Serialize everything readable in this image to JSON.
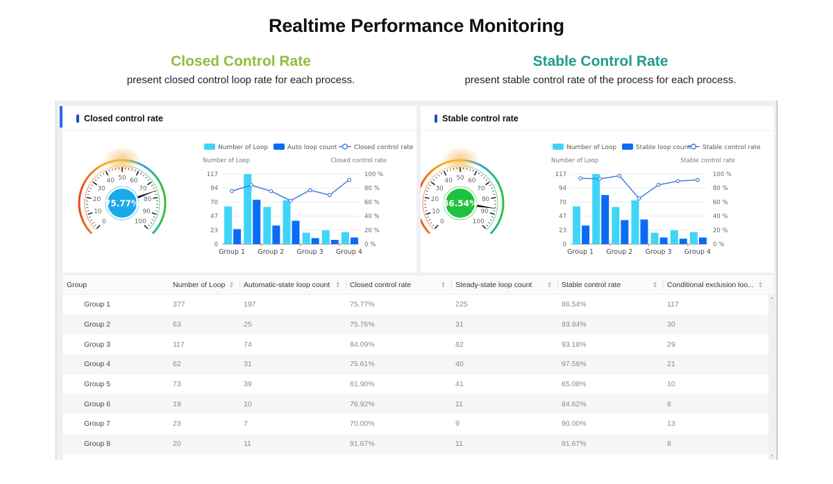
{
  "page": {
    "title": "Realtime Performance Monitoring",
    "left_section": {
      "heading": "Closed Control Rate",
      "description": "present closed control loop rate for each process.",
      "color": "#8DBF3C"
    },
    "right_section": {
      "heading": "Stable Control Rate",
      "description": "present stable control rate of the process for each process.",
      "color": "#1C9B8E"
    }
  },
  "colors": {
    "bar_light": "#3fd5f8",
    "bar_dark": "#0a6cf5",
    "line": "#3f7fd4",
    "gauge_blue": "#1ca9e8",
    "gauge_green": "#1fc23c"
  },
  "panels": [
    {
      "title": "Closed control rate",
      "gauge": {
        "value": 75.77,
        "label": "75.77%",
        "fill": "#1ca9e8",
        "ticks": [
          "0",
          "10",
          "20",
          "30",
          "40",
          "50",
          "60",
          "70",
          "80",
          "90",
          "100"
        ]
      },
      "legend": [
        "Number of Loop",
        "Auto loop count",
        "Closed control rate"
      ],
      "left_axis_title": "Number of Loop",
      "right_axis_title": "Closed control rate"
    },
    {
      "title": "Stable control rate",
      "gauge": {
        "value": 86.54,
        "label": "86.54%",
        "fill": "#1fc23c",
        "ticks": [
          "0",
          "10",
          "20",
          "30",
          "40",
          "50",
          "60",
          "70",
          "80",
          "90",
          "100"
        ]
      },
      "legend": [
        "Number of Loop",
        "Stable loop count",
        "Stable control rate"
      ],
      "left_axis_title": "Number of Loop",
      "right_axis_title": "Stable control rate"
    }
  ],
  "chart_data": [
    {
      "type": "bar",
      "title": "Closed control rate",
      "categories": [
        "Group 1",
        "",
        "Group 2",
        "",
        "Group 3",
        "",
        "Group 4"
      ],
      "series": [
        {
          "name": "Number of Loop",
          "type": "bar",
          "values": [
            63,
            117,
            62,
            73,
            19,
            23,
            20
          ]
        },
        {
          "name": "Auto loop count",
          "type": "bar",
          "values": [
            25,
            74,
            31,
            39,
            10,
            7,
            11
          ]
        },
        {
          "name": "Closed control rate",
          "type": "line",
          "axis": "right",
          "values": [
            75.76,
            84.09,
            75.61,
            61.9,
            76.92,
            70.0,
            91.67
          ]
        }
      ],
      "ylabel": "Number of Loop",
      "ylabel_right": "Closed control rate",
      "y_ticks": [
        "0",
        "23",
        "47",
        "70",
        "94",
        "117"
      ],
      "ylim": [
        0,
        117
      ],
      "y2_ticks": [
        "0 %",
        "20 %",
        "40 %",
        "60 %",
        "80 %",
        "100 %"
      ],
      "y2lim": [
        0,
        100
      ],
      "legend": "top"
    },
    {
      "type": "bar",
      "title": "Stable control rate",
      "categories": [
        "Group 1",
        "",
        "Group 2",
        "",
        "Group 3",
        "",
        "Group 4"
      ],
      "series": [
        {
          "name": "Number of Loop",
          "type": "bar",
          "values": [
            63,
            117,
            62,
            73,
            19,
            23,
            20
          ]
        },
        {
          "name": "Stable loop count",
          "type": "bar",
          "values": [
            31,
            82,
            40,
            41,
            11,
            9,
            11
          ]
        },
        {
          "name": "Stable control rate",
          "type": "line",
          "axis": "right",
          "values": [
            93.94,
            93.18,
            97.56,
            65.08,
            84.62,
            90.0,
            91.67
          ]
        }
      ],
      "ylabel": "Number of Loop",
      "ylabel_right": "Stable control rate",
      "y_ticks": [
        "0",
        "23",
        "47",
        "70",
        "94",
        "117"
      ],
      "ylim": [
        0,
        117
      ],
      "y2_ticks": [
        "0 %",
        "20 %",
        "40 %",
        "60 %",
        "80 %",
        "100 %"
      ],
      "y2lim": [
        0,
        100
      ],
      "legend": "top"
    }
  ],
  "table": {
    "columns": [
      {
        "label": "Group",
        "sortable": false
      },
      {
        "label": "Number of Loop",
        "sortable": true
      },
      {
        "label": "Automatic-state loop count",
        "sortable": true
      },
      {
        "label": "Closed control rate",
        "sortable": true
      },
      {
        "label": "Steady-state loop count",
        "sortable": true
      },
      {
        "label": "Stable control rate",
        "sortable": true
      },
      {
        "label": "Conditional exclusion loo...",
        "sortable": true
      }
    ],
    "rows": [
      [
        "Group 1",
        "377",
        "197",
        "75.77%",
        "225",
        "86.54%",
        "117"
      ],
      [
        "Group 2",
        "63",
        "25",
        "75.76%",
        "31",
        "93.94%",
        "30"
      ],
      [
        "Group 3",
        "117",
        "74",
        "84.09%",
        "82",
        "93.18%",
        "29"
      ],
      [
        "Group 4",
        "62",
        "31",
        "75.61%",
        "40",
        "97.56%",
        "21"
      ],
      [
        "Group 5",
        "73",
        "39",
        "61.90%",
        "41",
        "65.08%",
        "10"
      ],
      [
        "Group 6",
        "19",
        "10",
        "76.92%",
        "11",
        "84.62%",
        "6"
      ],
      [
        "Group 7",
        "23",
        "7",
        "70.00%",
        "9",
        "90.00%",
        "13"
      ],
      [
        "Group 8",
        "20",
        "11",
        "91.67%",
        "11",
        "91.67%",
        "8"
      ]
    ]
  }
}
